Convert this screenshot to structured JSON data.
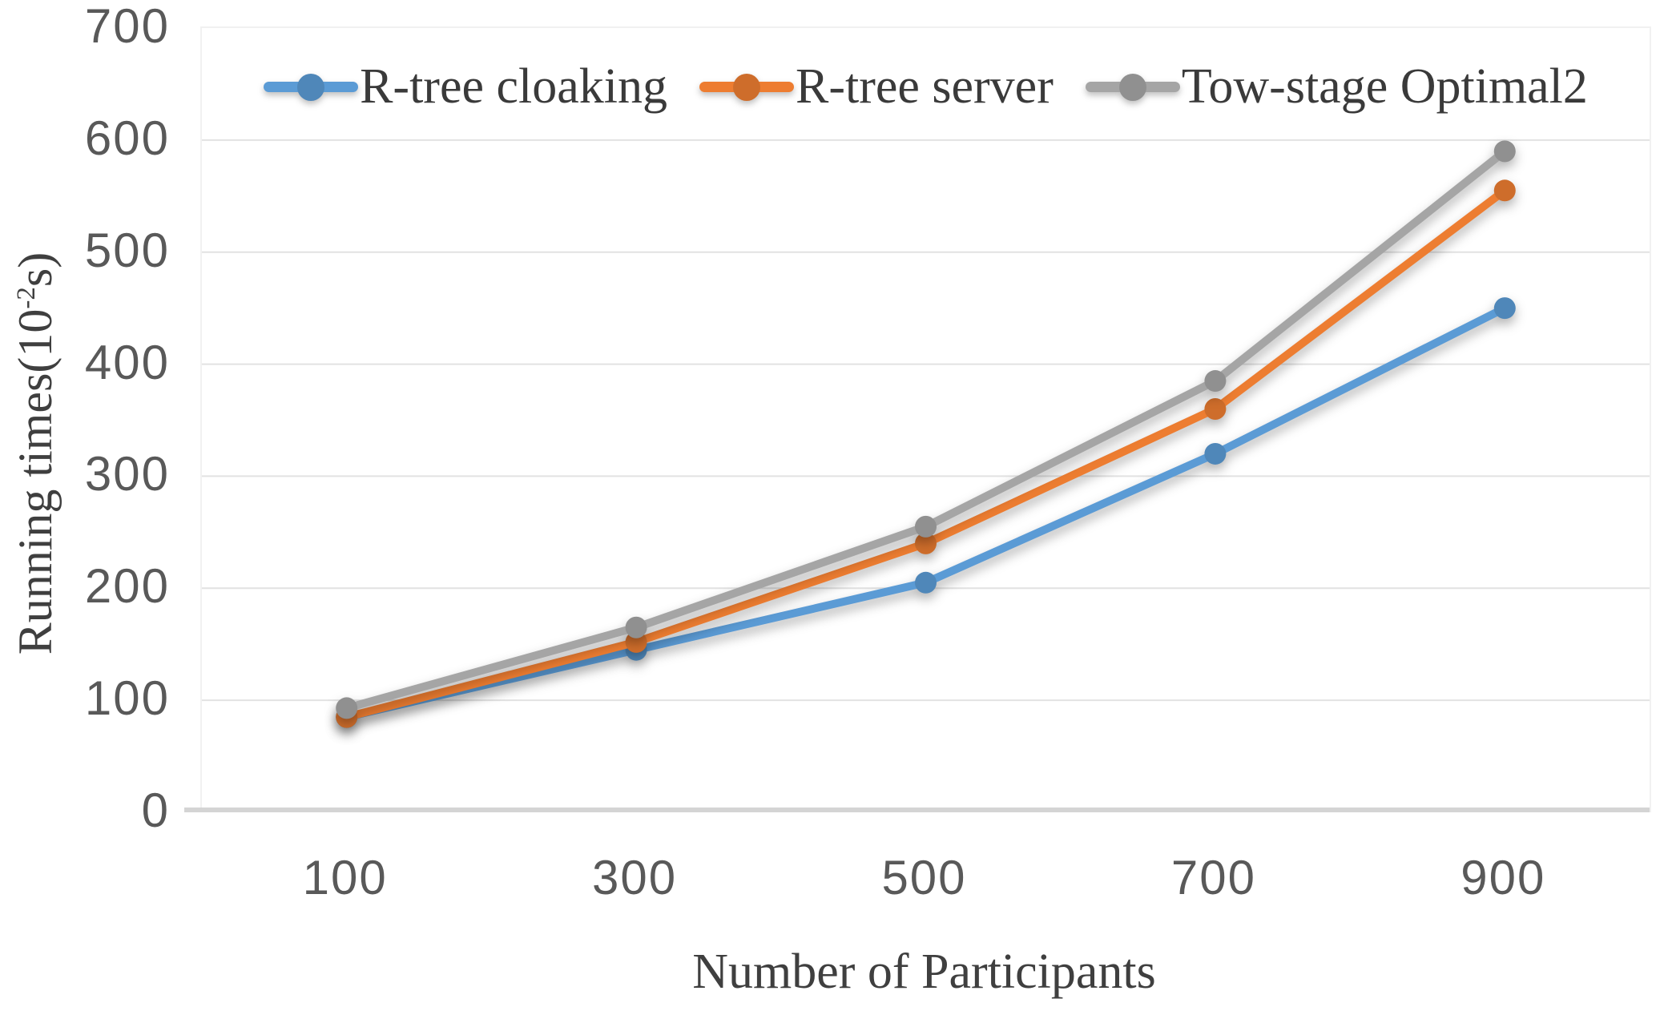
{
  "chart_data": {
    "type": "line",
    "title": "",
    "xlabel": "Number of Participants",
    "ylabel": "Running times(10⁻²s)",
    "ylabel_parts": {
      "prefix": "Running times(10",
      "sup": "-2",
      "suffix": "s)"
    },
    "categories": [
      "100",
      "300",
      "500",
      "700",
      "900"
    ],
    "series": [
      {
        "name": "R-tree cloaking",
        "color": "#5B9BD5",
        "values": [
          85,
          145,
          205,
          320,
          450
        ]
      },
      {
        "name": "R-tree server",
        "color": "#ED7D31",
        "values": [
          85,
          152,
          240,
          360,
          555
        ]
      },
      {
        "name": "Tow-stage Optimal2",
        "color": "#A5A5A5",
        "values": [
          93,
          165,
          255,
          385,
          590
        ]
      }
    ],
    "ylim": [
      0,
      700
    ],
    "yticks": [
      0,
      100,
      200,
      300,
      400,
      500,
      600,
      700
    ],
    "grid": true,
    "legend_position": "top-center",
    "colors": {
      "gridline": "#E2E2E2",
      "axis_line": "#D4D4D4",
      "plot_border": "#F1F1F1",
      "tick_text": "#595959",
      "label_text": "#3F3F3F"
    }
  }
}
